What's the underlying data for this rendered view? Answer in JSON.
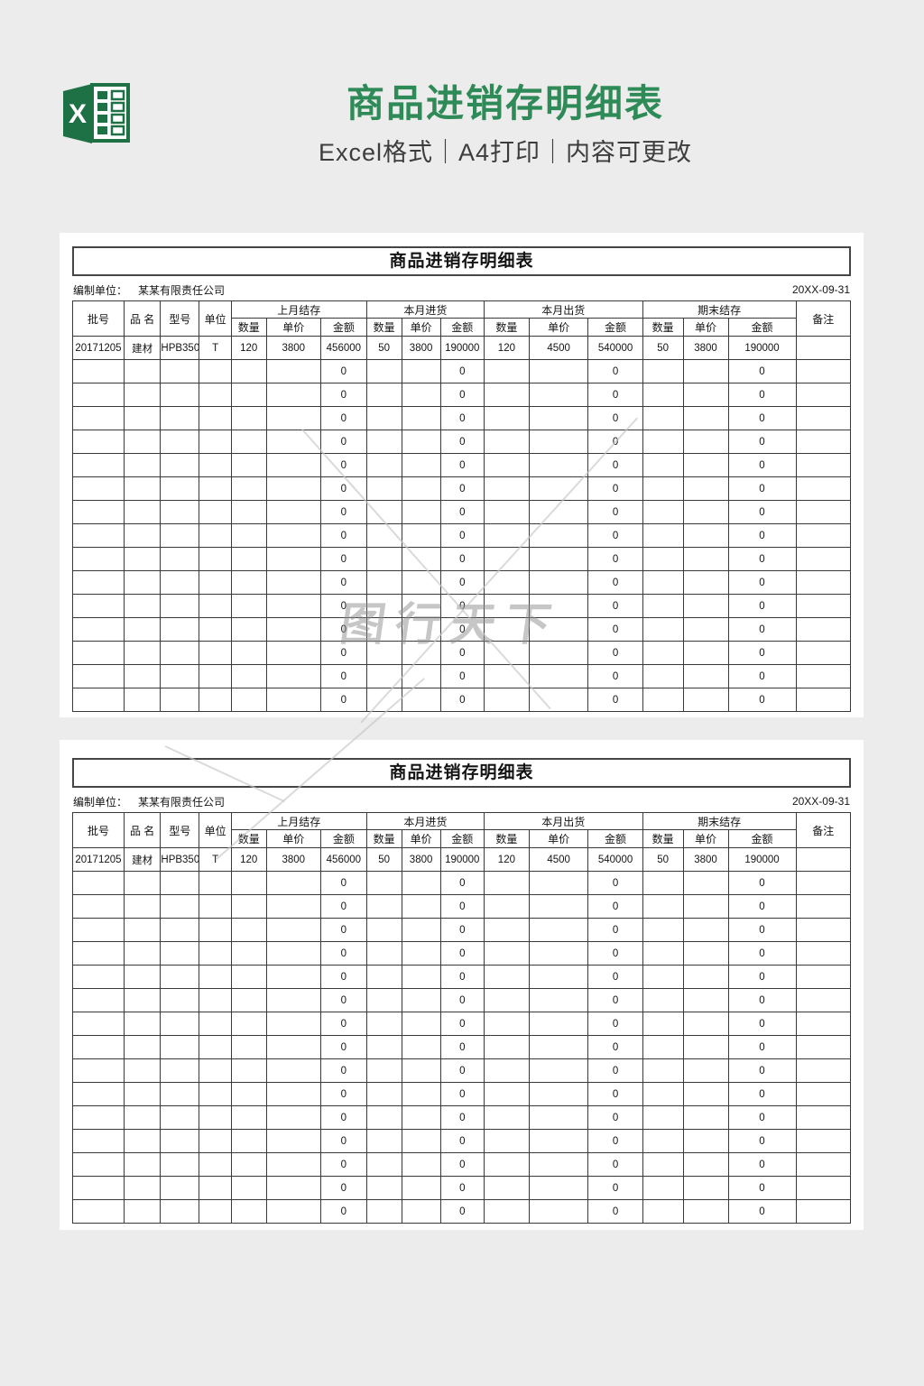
{
  "header": {
    "title": "商品进销存明细表",
    "subtitle": "Excel格式｜A4打印｜内容可更改",
    "icon_letter": "X"
  },
  "watermark": {
    "text": "图行天下"
  },
  "sheet": {
    "table_title": "商品进销存明细表",
    "prepared_by_label": "编制单位：",
    "prepared_by_value": "某某有限责任公司",
    "date": "20XX-09-31",
    "simple_columns": [
      "批号",
      "品  名",
      "型号",
      "单位"
    ],
    "groups": [
      "上月结存",
      "本月进货",
      "本月出货",
      "期末结存"
    ],
    "sub_labels": [
      "数量",
      "单价",
      "金额"
    ],
    "remarks_label": "备注",
    "col_widths_pct": [
      6.6,
      4.7,
      5.0,
      4.1,
      4.5,
      7.0,
      5.9,
      4.5,
      5.0,
      5.6,
      5.8,
      7.6,
      7.0,
      5.2,
      5.8,
      8.7,
      7.0
    ],
    "data_row": [
      "20171205",
      "建材",
      "HPB350",
      "T",
      "120",
      "3800",
      "456000",
      "50",
      "3800",
      "190000",
      "120",
      "4500",
      "540000",
      "50",
      "3800",
      "190000",
      ""
    ],
    "zero_row": [
      "",
      "",
      "",
      "",
      "",
      "",
      "0",
      "",
      "",
      "0",
      "",
      "",
      "0",
      "",
      "",
      "0",
      ""
    ],
    "zero_row_count": 15
  },
  "colors": {
    "accent_green": "#2e8b57",
    "logo_green": "#1e7145",
    "page_background": "#ececec",
    "grid_border": "#3a3a3a"
  }
}
